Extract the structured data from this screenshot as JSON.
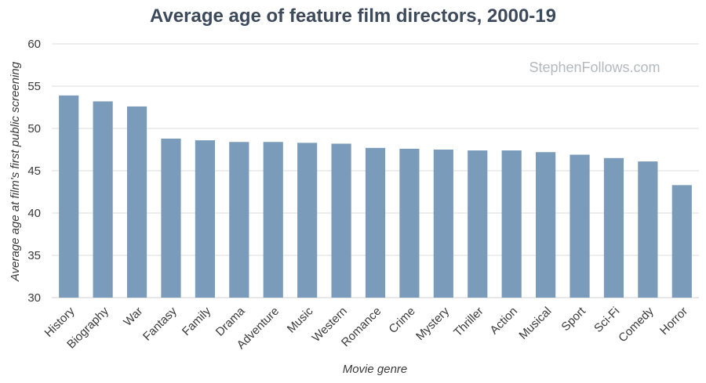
{
  "chart_data": {
    "type": "bar",
    "title": "Average age of feature film directors, 2000-19",
    "watermark": "StephenFollows.com",
    "xlabel": "Movie genre",
    "ylabel": "Average age at film's first public screening",
    "ylim": [
      30,
      60
    ],
    "yticks": [
      "30",
      "35",
      "40",
      "45",
      "50",
      "55",
      "60"
    ],
    "grid": true,
    "categories": [
      "History",
      "Biography",
      "War",
      "Fantasy",
      "Family",
      "Drama",
      "Adventure",
      "Music",
      "Western",
      "Romance",
      "Crime",
      "Mystery",
      "Thriller",
      "Action",
      "Musical",
      "Sport",
      "Sci-Fi",
      "Comedy",
      "Horror"
    ],
    "values": [
      53.9,
      53.2,
      52.6,
      48.8,
      48.6,
      48.4,
      48.4,
      48.3,
      48.2,
      47.7,
      47.6,
      47.5,
      47.4,
      47.4,
      47.2,
      46.9,
      46.5,
      46.1,
      43.3
    ],
    "bar_color": "#7a9cba"
  }
}
